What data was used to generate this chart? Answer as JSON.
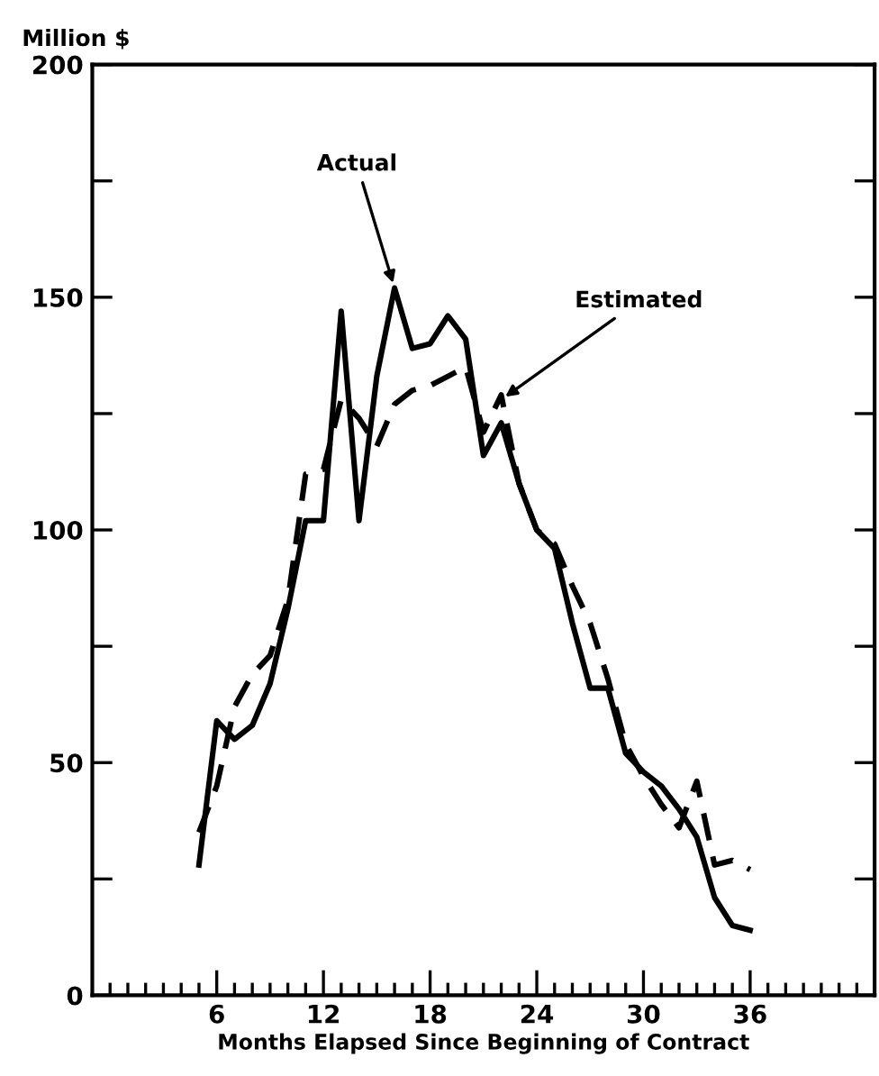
{
  "chart_data": {
    "type": "line",
    "xlabel": "Months Elapsed Since Beginning of Contract",
    "ylabel": "Million $",
    "x": [
      5,
      6,
      7,
      8,
      9,
      10,
      11,
      12,
      13,
      14,
      15,
      16,
      17,
      18,
      19,
      20,
      21,
      22,
      23,
      24,
      25,
      26,
      27,
      28,
      29,
      30,
      31,
      32,
      33,
      34,
      35,
      36
    ],
    "series": [
      {
        "color": "#000000",
        "line_style": "solid",
        "values": [
          28,
          59,
          55,
          58,
          67,
          83,
          102,
          102,
          147,
          102,
          133,
          152,
          139,
          140,
          146,
          141,
          116,
          123,
          110,
          100,
          96,
          80,
          66,
          66,
          52,
          48,
          45,
          40,
          34,
          21,
          15,
          14
        ]
      },
      {
        "color": "#000000",
        "line_style": "dashed",
        "values": [
          35,
          45,
          62,
          69,
          73,
          85,
          112,
          113,
          128,
          124,
          118,
          127,
          130,
          131,
          133,
          135,
          121,
          129,
          110,
          100,
          97,
          88,
          80,
          68,
          54,
          47,
          41,
          36,
          46,
          28,
          29,
          27
        ]
      }
    ],
    "annotations": [
      {
        "text": "Actual",
        "x": 16,
        "y": 152
      },
      {
        "text": "Estimated",
        "x": 22,
        "y": 128
      }
    ],
    "xlim": [
      -1,
      43
    ],
    "ylim": [
      0,
      200
    ],
    "xticks": [
      {
        "value": 0,
        "label": null
      },
      {
        "value": 1,
        "label": null
      },
      {
        "value": 2,
        "label": null
      },
      {
        "value": 3,
        "label": null
      },
      {
        "value": 4,
        "label": null
      },
      {
        "value": 5,
        "label": null
      },
      6,
      {
        "value": 7,
        "label": null
      },
      {
        "value": 8,
        "label": null
      },
      {
        "value": 9,
        "label": null
      },
      {
        "value": 10,
        "label": null
      },
      {
        "value": 11,
        "label": null
      },
      12,
      {
        "value": 13,
        "label": null
      },
      {
        "value": 14,
        "label": null
      },
      {
        "value": 15,
        "label": null
      },
      {
        "value": 16,
        "label": null
      },
      {
        "value": 17,
        "label": null
      },
      18,
      {
        "value": 19,
        "label": null
      },
      {
        "value": 20,
        "label": null
      },
      {
        "value": 21,
        "label": null
      },
      {
        "value": 22,
        "label": null
      },
      {
        "value": 23,
        "label": null
      },
      24,
      {
        "value": 25,
        "label": null
      },
      {
        "value": 26,
        "label": null
      },
      {
        "value": 27,
        "label": null
      },
      {
        "value": 28,
        "label": null
      },
      {
        "value": 29,
        "label": null
      },
      30,
      {
        "value": 31,
        "label": null
      },
      {
        "value": 32,
        "label": null
      },
      {
        "value": 33,
        "label": null
      },
      {
        "value": 34,
        "label": null
      },
      {
        "value": 35,
        "label": null
      },
      36,
      {
        "value": 37,
        "label": null
      },
      {
        "value": 38,
        "label": null
      },
      {
        "value": 39,
        "label": null
      },
      {
        "value": 40,
        "label": null
      },
      {
        "value": 41,
        "label": null
      },
      {
        "value": 42,
        "label": null
      }
    ],
    "yticks": [
      0,
      {
        "value": 25,
        "label": null
      },
      50,
      {
        "value": 75,
        "label": null
      },
      100,
      {
        "value": 125,
        "label": null
      },
      150,
      {
        "value": 175,
        "label": null
      },
      200
    ],
    "grid": false
  }
}
